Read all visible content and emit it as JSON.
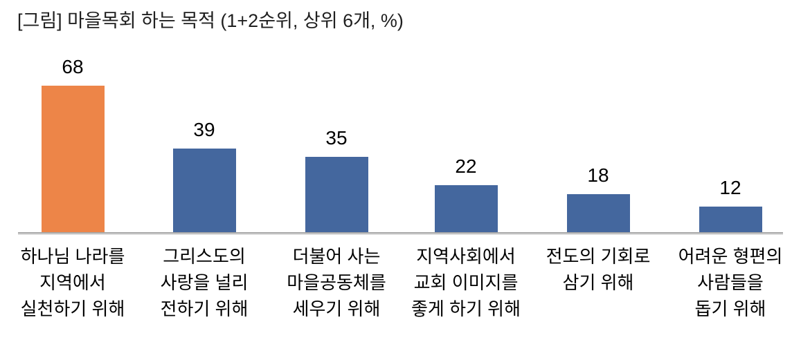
{
  "chart_data": {
    "type": "bar",
    "title": "[그림] 마을목회 하는 목적 (1+2순위, 상위 6개, %)",
    "categories": [
      "하나님 나라를\n지역에서\n실천하기 위해",
      "그리스도의\n사랑을 널리\n전하기 위해",
      "더불어 사는\n마을공동체를\n세우기 위해",
      "지역사회에서\n교회 이미지를\n좋게 하기 위해",
      "전도의 기회로\n삼기 위해",
      "어려운 형편의\n사람들을\n돕기 위해"
    ],
    "values": [
      68,
      39,
      35,
      22,
      18,
      12
    ],
    "unit": "%",
    "bar_colors": [
      "#ED8548",
      "#44679E",
      "#44679E",
      "#44679E",
      "#44679E",
      "#44679E"
    ],
    "highlight_color": "#ED8548",
    "default_color": "#44679E",
    "axis_line_color": "#A9A9A9",
    "data_labels": true,
    "ylim": [
      0,
      72
    ],
    "grid": false,
    "legend": false,
    "xlabel": "",
    "ylabel": ""
  }
}
